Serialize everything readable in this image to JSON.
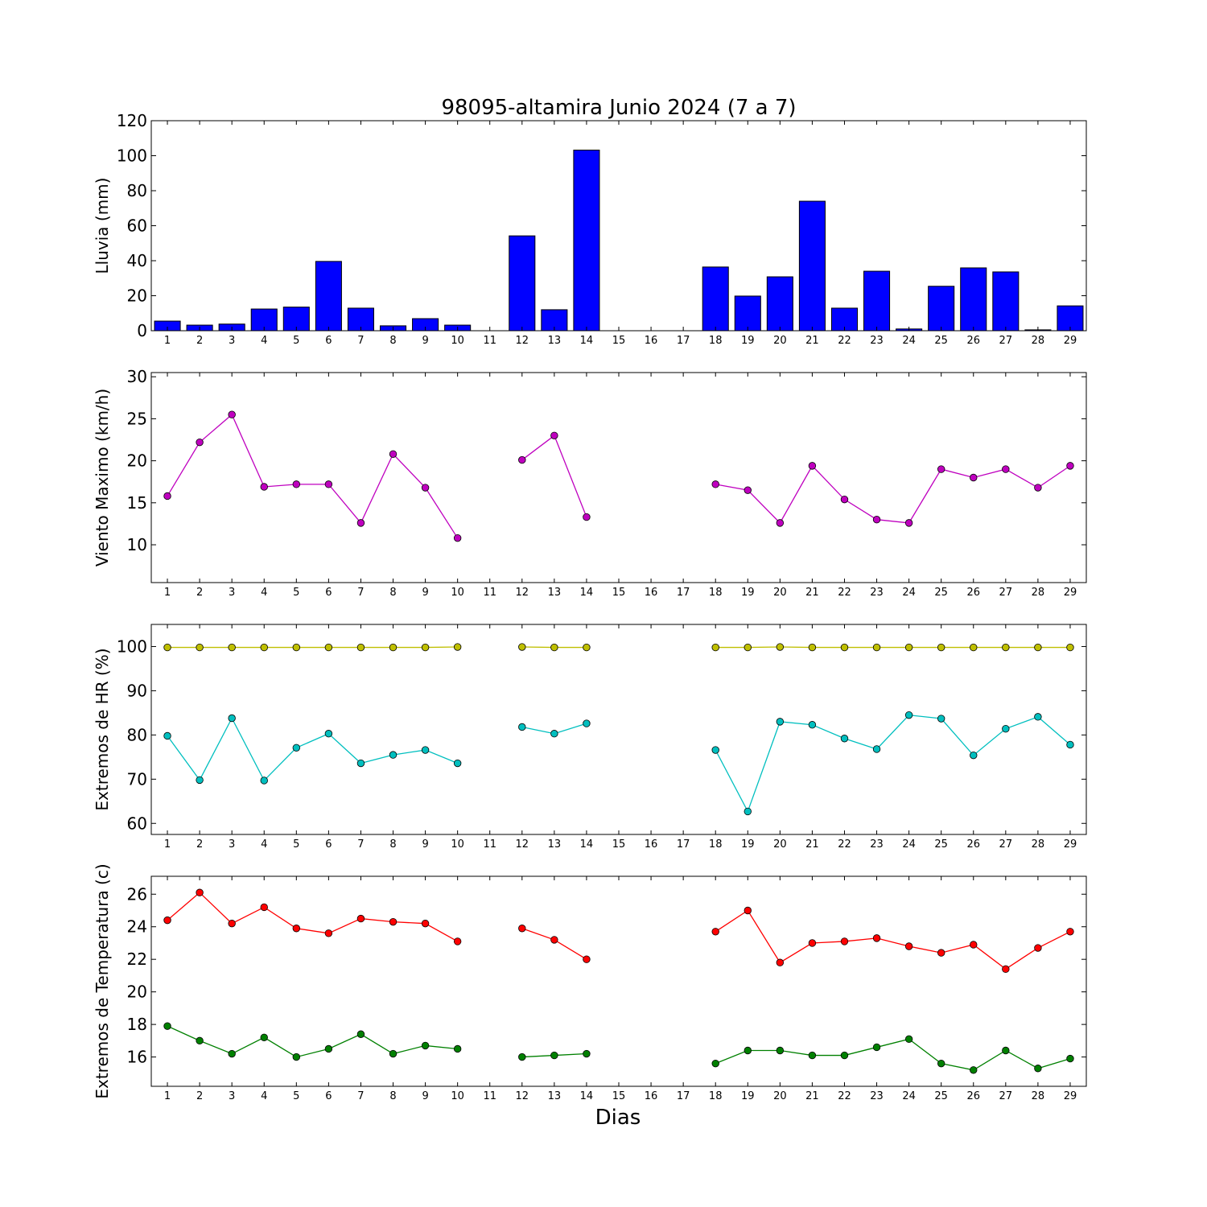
{
  "figure": {
    "title": "98095-altamira Junio 2024  (7 a 7)",
    "xlabel": "Dias"
  },
  "chart_data": [
    {
      "type": "bar",
      "ylabel": "Lluvia (mm)",
      "ylim": [
        0,
        120
      ],
      "yticks": [
        0,
        20,
        40,
        60,
        80,
        100,
        120
      ],
      "categories": [
        1,
        2,
        3,
        4,
        5,
        6,
        7,
        8,
        9,
        10,
        11,
        12,
        13,
        14,
        15,
        16,
        17,
        18,
        19,
        20,
        21,
        22,
        23,
        24,
        25,
        26,
        27,
        28,
        29
      ],
      "series": [
        {
          "color": "#0000ff",
          "values": [
            5.5,
            3.2,
            3.8,
            12.4,
            13.5,
            39.6,
            12.9,
            2.8,
            6.9,
            3.2,
            0,
            54.2,
            12.0,
            103.2,
            0,
            0,
            0,
            36.4,
            19.8,
            30.8,
            74.0,
            12.9,
            34.0,
            1.0,
            25.4,
            35.9,
            33.6,
            0.5,
            14.2
          ]
        }
      ]
    },
    {
      "type": "line",
      "ylabel": "Viento Maximo (km/h)",
      "ylim": [
        5.5,
        30.5
      ],
      "yticks": [
        10,
        15,
        20,
        25,
        30
      ],
      "x": [
        1,
        2,
        3,
        4,
        5,
        6,
        7,
        8,
        9,
        10,
        11,
        12,
        13,
        14,
        15,
        16,
        17,
        18,
        19,
        20,
        21,
        22,
        23,
        24,
        25,
        26,
        27,
        28,
        29
      ],
      "series": [
        {
          "color": "#bf00bf",
          "values": [
            15.8,
            22.2,
            25.5,
            16.9,
            17.2,
            17.2,
            12.6,
            20.8,
            16.8,
            10.8,
            null,
            20.1,
            23.0,
            13.3,
            null,
            null,
            null,
            17.2,
            16.5,
            12.6,
            19.4,
            15.4,
            13.0,
            12.6,
            19.0,
            18.0,
            19.0,
            16.8,
            19.4
          ]
        }
      ]
    },
    {
      "type": "line",
      "ylabel": "Extremos de HR (%)",
      "ylim": [
        57.5,
        105
      ],
      "yticks": [
        60,
        70,
        80,
        90,
        100
      ],
      "x": [
        1,
        2,
        3,
        4,
        5,
        6,
        7,
        8,
        9,
        10,
        11,
        12,
        13,
        14,
        15,
        16,
        17,
        18,
        19,
        20,
        21,
        22,
        23,
        24,
        25,
        26,
        27,
        28,
        29
      ],
      "series": [
        {
          "color": "#bfbf00",
          "values": [
            99.8,
            99.8,
            99.8,
            99.8,
            99.8,
            99.8,
            99.8,
            99.8,
            99.8,
            99.9,
            null,
            99.9,
            99.8,
            99.8,
            null,
            null,
            null,
            99.8,
            99.8,
            99.9,
            99.8,
            99.8,
            99.8,
            99.8,
            99.8,
            99.8,
            99.8,
            99.8,
            99.8
          ]
        },
        {
          "color": "#00bfbf",
          "values": [
            79.8,
            69.8,
            83.8,
            69.7,
            77.1,
            80.3,
            73.6,
            75.5,
            76.6,
            73.6,
            null,
            81.8,
            80.3,
            82.6,
            null,
            null,
            null,
            76.6,
            62.7,
            83.0,
            82.3,
            79.2,
            76.8,
            84.5,
            83.7,
            75.4,
            81.4,
            84.1,
            77.8
          ]
        }
      ]
    },
    {
      "type": "line",
      "ylabel": "Extremos de Temperatura (c)",
      "ylim": [
        14.2,
        27.1
      ],
      "yticks": [
        16,
        18,
        20,
        22,
        24,
        26
      ],
      "x": [
        1,
        2,
        3,
        4,
        5,
        6,
        7,
        8,
        9,
        10,
        11,
        12,
        13,
        14,
        15,
        16,
        17,
        18,
        19,
        20,
        21,
        22,
        23,
        24,
        25,
        26,
        27,
        28,
        29
      ],
      "series": [
        {
          "color": "#ff0000",
          "values": [
            24.4,
            26.1,
            24.2,
            25.2,
            23.9,
            23.6,
            24.5,
            24.3,
            24.2,
            23.1,
            null,
            23.9,
            23.2,
            22.0,
            null,
            null,
            null,
            23.7,
            25.0,
            21.8,
            23.0,
            23.1,
            23.3,
            22.8,
            22.4,
            22.9,
            21.4,
            22.7,
            23.7
          ]
        },
        {
          "color": "#008000",
          "values": [
            17.9,
            17.0,
            16.2,
            17.2,
            16.0,
            16.5,
            17.4,
            16.2,
            16.7,
            16.5,
            null,
            16.0,
            16.1,
            16.2,
            null,
            null,
            null,
            15.6,
            16.4,
            16.4,
            16.1,
            16.1,
            16.6,
            17.1,
            15.6,
            15.2,
            16.4,
            15.3,
            15.9
          ]
        }
      ]
    }
  ]
}
